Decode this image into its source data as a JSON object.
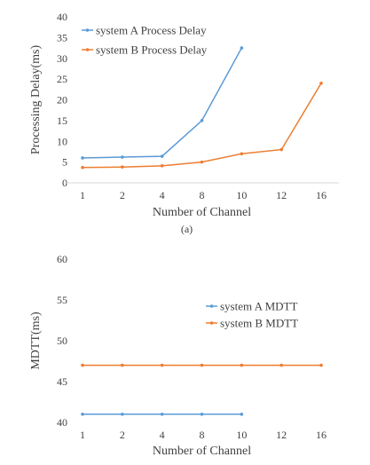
{
  "chart_data": [
    {
      "type": "line",
      "categories": [
        "1",
        "2",
        "4",
        "8",
        "10",
        "12",
        "16"
      ],
      "series": [
        {
          "name": "system A Process Delay",
          "color": "#5b9bd5",
          "values": [
            6,
            6.2,
            6.4,
            15,
            32.5,
            null,
            null
          ]
        },
        {
          "name": "system B Process Delay",
          "color": "#ed7d31",
          "values": [
            3.7,
            3.8,
            4.1,
            5,
            7,
            8,
            24
          ]
        }
      ],
      "xlabel": "Number of Channel",
      "ylabel": "Processing Delay(ms)",
      "ylim": [
        0,
        40
      ],
      "yticks": [
        0,
        5,
        10,
        15,
        20,
        25,
        30,
        35,
        40
      ],
      "grid": false,
      "legend": "top-left",
      "caption": "(a)"
    },
    {
      "type": "line",
      "categories": [
        "1",
        "2",
        "4",
        "8",
        "10",
        "12",
        "16"
      ],
      "series": [
        {
          "name": "system A MDTT",
          "color": "#5b9bd5",
          "values": [
            41,
            41,
            41,
            41,
            41,
            null,
            null
          ]
        },
        {
          "name": "system B MDTT",
          "color": "#ed7d31",
          "values": [
            47,
            47,
            47,
            47,
            47,
            47,
            47
          ]
        }
      ],
      "xlabel": "Number of Channel",
      "ylabel": "MDTT(ms)",
      "ylim": [
        40,
        60
      ],
      "yticks": [
        40,
        45,
        50,
        55,
        60
      ],
      "grid": false,
      "legend": "right"
    }
  ]
}
